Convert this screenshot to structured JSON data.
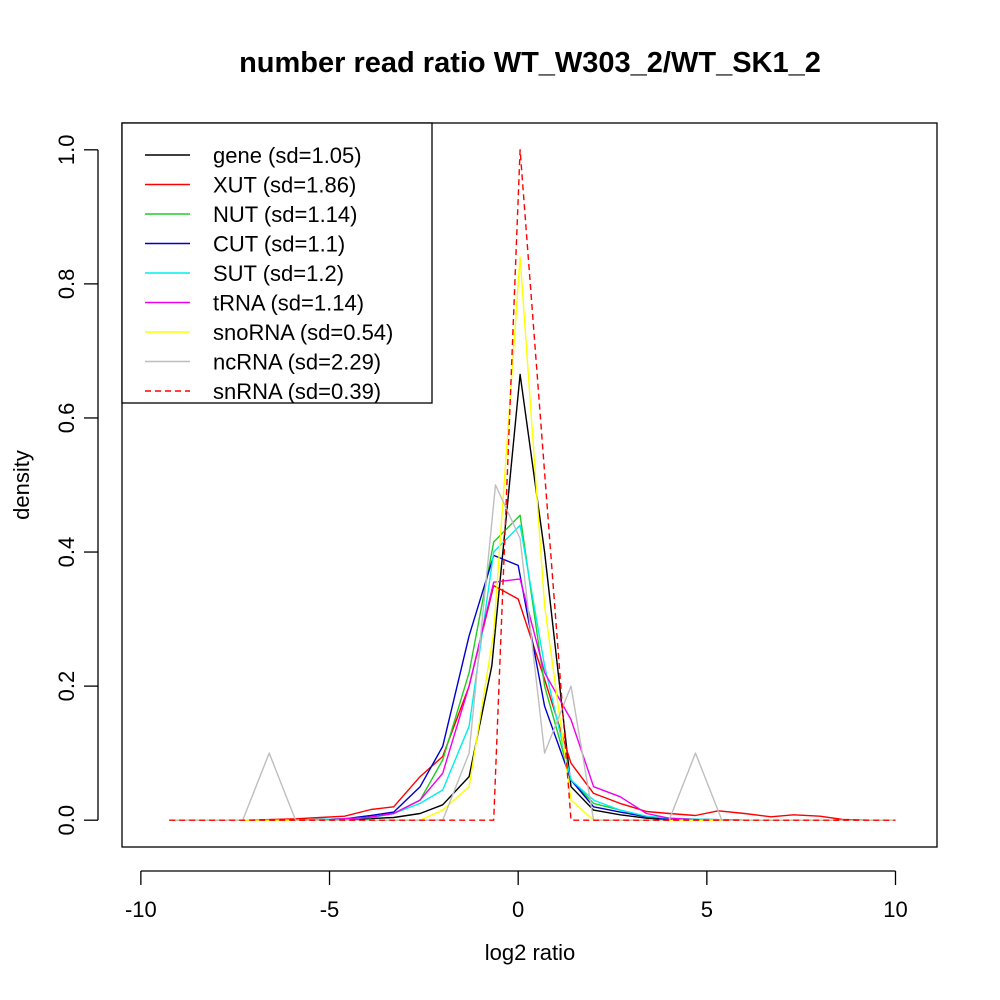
{
  "chart_data": {
    "type": "line",
    "title": "number read ratio WT_W303_2/WT_SK1_2",
    "xlabel": "log2 ratio",
    "ylabel": "density",
    "xlim": [
      -10.5,
      11.1
    ],
    "ylim": [
      -0.04,
      1.04
    ],
    "xticks": [
      -10,
      -5,
      0,
      5,
      10
    ],
    "yticks": [
      0.0,
      0.2,
      0.4,
      0.6,
      0.8,
      1.0
    ],
    "xtick_labels": [
      "-10",
      "-5",
      "0",
      "5",
      "10"
    ],
    "ytick_labels": [
      "0.0",
      "0.2",
      "0.4",
      "0.6",
      "0.8",
      "1.0"
    ],
    "grid": false,
    "legend_position": "top-left",
    "series": [
      {
        "name": "gene (sd=1.05)",
        "color": "#000000",
        "dash": false,
        "x": [
          -9.25,
          -7.25,
          -5.25,
          -4.5,
          -3.3,
          -2.6,
          -2.0,
          -1.3,
          -0.7,
          0.05,
          0.7,
          1.4,
          2.0,
          2.7,
          3.4,
          4.0,
          6.0,
          8.0,
          10.0
        ],
        "y": [
          0.0,
          0.0,
          0.0,
          0.001,
          0.004,
          0.01,
          0.023,
          0.065,
          0.23,
          0.665,
          0.4,
          0.05,
          0.015,
          0.008,
          0.003,
          0.001,
          0.0,
          0.0,
          0.0
        ]
      },
      {
        "name": "XUT (sd=1.86)",
        "color": "#ff0000",
        "dash": false,
        "x": [
          -9.25,
          -7.25,
          -6.5,
          -5.9,
          -5.25,
          -4.6,
          -3.9,
          -3.3,
          -2.6,
          -2.0,
          -1.3,
          -0.65,
          0.0,
          0.7,
          1.4,
          2.0,
          2.7,
          3.4,
          4.0,
          4.7,
          5.3,
          6.0,
          6.7,
          7.3,
          8.0,
          8.6,
          9.3,
          10.0
        ],
        "y": [
          0.0,
          0.0,
          0.001,
          0.002,
          0.004,
          0.006,
          0.016,
          0.02,
          0.065,
          0.095,
          0.2,
          0.35,
          0.33,
          0.21,
          0.085,
          0.04,
          0.025,
          0.013,
          0.01,
          0.007,
          0.014,
          0.01,
          0.005,
          0.008,
          0.006,
          0.001,
          0.0,
          0.0
        ]
      },
      {
        "name": "NUT (sd=1.14)",
        "color": "#22cc22",
        "dash": false,
        "x": [
          -9.25,
          -6.0,
          -5.25,
          -4.6,
          -3.9,
          -3.3,
          -2.6,
          -2.0,
          -1.3,
          -0.65,
          0.05,
          0.7,
          1.4,
          2.0,
          2.7,
          3.4,
          4.0,
          5.0,
          6.0
        ],
        "y": [
          0.0,
          0.0,
          0.001,
          0.002,
          0.004,
          0.01,
          0.03,
          0.09,
          0.22,
          0.415,
          0.455,
          0.2,
          0.06,
          0.025,
          0.015,
          0.005,
          0.002,
          0.0,
          0.0
        ]
      },
      {
        "name": "CUT (sd=1.1)",
        "color": "#0000cc",
        "dash": false,
        "x": [
          -9.25,
          -6.0,
          -5.25,
          -4.6,
          -3.9,
          -3.3,
          -2.6,
          -2.0,
          -1.3,
          -0.65,
          0.0,
          0.7,
          1.4,
          2.0,
          2.7,
          3.4,
          4.0,
          5.0,
          6.0
        ],
        "y": [
          0.0,
          0.0,
          0.001,
          0.002,
          0.007,
          0.012,
          0.05,
          0.11,
          0.275,
          0.395,
          0.38,
          0.17,
          0.06,
          0.02,
          0.012,
          0.005,
          0.002,
          0.001,
          0.0
        ]
      },
      {
        "name": "SUT (sd=1.2)",
        "color": "#00eeee",
        "dash": false,
        "x": [
          -9.25,
          -6.0,
          -5.25,
          -4.6,
          -3.9,
          -3.3,
          -2.6,
          -2.0,
          -1.3,
          -0.65,
          0.05,
          0.7,
          1.4,
          2.0,
          2.7,
          3.4,
          4.0,
          5.0,
          6.0
        ],
        "y": [
          0.0,
          0.0,
          0.001,
          0.002,
          0.004,
          0.01,
          0.025,
          0.045,
          0.14,
          0.4,
          0.44,
          0.23,
          0.06,
          0.03,
          0.015,
          0.006,
          0.003,
          0.001,
          0.0
        ]
      },
      {
        "name": "tRNA (sd=1.14)",
        "color": "#ee00ee",
        "dash": false,
        "x": [
          -9.25,
          -5.25,
          -4.0,
          -3.3,
          -2.6,
          -2.0,
          -1.3,
          -0.65,
          0.05,
          0.7,
          1.4,
          2.0,
          2.7,
          3.4,
          4.0,
          5.0,
          6.0
        ],
        "y": [
          0.0,
          0.0,
          0.004,
          0.01,
          0.03,
          0.07,
          0.2,
          0.355,
          0.36,
          0.22,
          0.15,
          0.05,
          0.035,
          0.01,
          0.003,
          0.0,
          0.0
        ]
      },
      {
        "name": "snoRNA (sd=0.54)",
        "color": "#ffff00",
        "dash": false,
        "x": [
          -9.25,
          -4.0,
          -2.6,
          -2.0,
          -1.3,
          -0.65,
          0.05,
          0.7,
          1.4,
          2.0,
          3.0,
          10.0
        ],
        "y": [
          0.0,
          0.0,
          0.0,
          0.015,
          0.05,
          0.28,
          0.84,
          0.32,
          0.03,
          0.0,
          0.0,
          0.0
        ]
      },
      {
        "name": "ncRNA (sd=2.29)",
        "color": "#bebebe",
        "dash": false,
        "x": [
          -9.25,
          -7.3,
          -6.6,
          -5.9,
          -2.6,
          -2.0,
          -1.3,
          -0.6,
          0.05,
          0.7,
          1.4,
          2.0,
          4.0,
          4.7,
          5.4,
          10.0
        ],
        "y": [
          0.0,
          0.0,
          0.1,
          0.0,
          0.0,
          0.0,
          0.1,
          0.5,
          0.42,
          0.1,
          0.2,
          0.0,
          0.0,
          0.1,
          0.0,
          0.0
        ]
      },
      {
        "name": "snRNA (sd=0.39)",
        "color": "#ff0000",
        "dash": true,
        "x": [
          -9.25,
          -0.65,
          0.05,
          1.4,
          10.0
        ],
        "y": [
          0.0,
          0.0,
          1.0,
          0.0,
          0.0
        ]
      }
    ]
  }
}
